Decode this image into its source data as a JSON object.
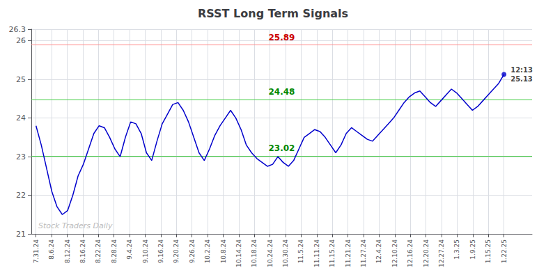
{
  "chart_data": {
    "type": "line",
    "title": "RSST Long Term Signals",
    "color": "#0000cc",
    "grid": true,
    "x": [
      0,
      0.3371,
      0.6742,
      1.0112,
      1.3483,
      1.6854,
      2.0225,
      2.3596,
      2.6966,
      3.0337,
      3.3708,
      3.7079,
      4.0449,
      4.382,
      4.7191,
      5.0562,
      5.3933,
      5.7303,
      6.0674,
      6.4045,
      6.7416,
      7.0787,
      7.4157,
      7.7528,
      8.0899,
      8.427,
      8.764,
      9.1011,
      9.4382,
      9.7753,
      10.1124,
      10.4494,
      10.7865,
      11.1236,
      11.4607,
      11.7978,
      12.1348,
      12.4719,
      12.809,
      13.1461,
      13.4831,
      13.8202,
      14.1573,
      14.4944,
      14.8315,
      15.1685,
      15.5056,
      15.8427,
      16.1798,
      16.5169,
      16.8539,
      17.191,
      17.5281,
      17.8652,
      18.2022,
      18.5393,
      18.8764,
      19.2135,
      19.5506,
      19.8876,
      20.2247,
      20.5618,
      20.8989,
      21.236,
      21.573,
      21.9101,
      22.2472,
      22.5843,
      22.9213,
      23.2584,
      23.5955,
      23.9326,
      24.2697,
      24.6067,
      24.9438,
      25.2809,
      25.618,
      25.9551,
      26.2921,
      26.6292,
      26.9663,
      27.3034,
      27.6404,
      27.9775,
      28.3146,
      28.6517,
      28.9888,
      29.3258,
      29.6629,
      30
    ],
    "values": [
      23.8,
      23.3,
      22.7,
      22.1,
      21.7,
      21.5,
      21.6,
      22.0,
      22.5,
      22.8,
      23.2,
      23.6,
      23.8,
      23.75,
      23.5,
      23.2,
      23.0,
      23.5,
      23.9,
      23.85,
      23.6,
      23.1,
      22.9,
      23.4,
      23.85,
      24.1,
      24.35,
      24.4,
      24.2,
      23.9,
      23.5,
      23.1,
      22.9,
      23.2,
      23.55,
      23.8,
      24.0,
      24.2,
      24.0,
      23.7,
      23.3,
      23.1,
      22.95,
      22.85,
      22.75,
      22.8,
      23.0,
      22.85,
      22.75,
      22.9,
      23.2,
      23.5,
      23.6,
      23.7,
      23.65,
      23.5,
      23.3,
      23.1,
      23.3,
      23.6,
      23.75,
      23.65,
      23.55,
      23.45,
      23.4,
      23.55,
      23.7,
      23.85,
      24.0,
      24.2,
      24.4,
      24.55,
      24.65,
      24.7,
      24.55,
      24.4,
      24.3,
      24.45,
      24.6,
      24.75,
      24.65,
      24.5,
      24.35,
      24.2,
      24.3,
      24.45,
      24.6,
      24.75,
      24.9,
      25.13
    ],
    "xlim": [
      -0.3,
      31.8
    ],
    "xticks": [
      {
        "value": 0,
        "label": "7.31.24"
      },
      {
        "value": 1,
        "label": "8.6.24"
      },
      {
        "value": 2,
        "label": "8.12.24"
      },
      {
        "value": 3,
        "label": "8.16.24"
      },
      {
        "value": 4,
        "label": "8.22.24"
      },
      {
        "value": 5,
        "label": "8.28.24"
      },
      {
        "value": 6,
        "label": "9.4.24"
      },
      {
        "value": 7,
        "label": "9.10.24"
      },
      {
        "value": 8,
        "label": "9.16.24"
      },
      {
        "value": 9,
        "label": "9.20.24"
      },
      {
        "value": 10,
        "label": "9.26.24"
      },
      {
        "value": 11,
        "label": "10.2.24"
      },
      {
        "value": 12,
        "label": "10.8.24"
      },
      {
        "value": 13,
        "label": "10.14.24"
      },
      {
        "value": 14,
        "label": "10.18.24"
      },
      {
        "value": 15,
        "label": "10.24.24"
      },
      {
        "value": 16,
        "label": "10.30.24"
      },
      {
        "value": 17,
        "label": "11.5.24"
      },
      {
        "value": 18,
        "label": "11.11.24"
      },
      {
        "value": 19,
        "label": "11.15.24"
      },
      {
        "value": 20,
        "label": "11.21.24"
      },
      {
        "value": 21,
        "label": "11.27.24"
      },
      {
        "value": 22,
        "label": "12.4.24"
      },
      {
        "value": 23,
        "label": "12.10.24"
      },
      {
        "value": 24,
        "label": "12.16.24"
      },
      {
        "value": 25,
        "label": "12.20.24"
      },
      {
        "value": 26,
        "label": "12.27.24"
      },
      {
        "value": 27,
        "label": "1.3.25"
      },
      {
        "value": 28,
        "label": "1.9.25"
      },
      {
        "value": 29,
        "label": "1.15.25"
      },
      {
        "value": 30,
        "label": "1.22.25"
      }
    ],
    "ylim": [
      21.0,
      26.3
    ],
    "yticks": [
      21,
      22,
      23,
      24,
      25,
      26
    ],
    "reference_lines": [
      {
        "y": 25.89,
        "color": "#ff8888",
        "label": "25.89",
        "label_color": "#cc0000"
      },
      {
        "y": 24.48,
        "color": "#44cc44",
        "label": "24.48",
        "label_color": "#008800"
      },
      {
        "y": 23.02,
        "color": "#44cc44",
        "label": "23.02",
        "label_color": "#008800"
      }
    ],
    "annotations": [
      {
        "text": "12:13",
        "color": "#111111"
      },
      {
        "text": "25.13",
        "color": "#111111"
      }
    ],
    "watermark": {
      "text": "Stock Traders Daily",
      "color": "#bbbbbb"
    }
  }
}
